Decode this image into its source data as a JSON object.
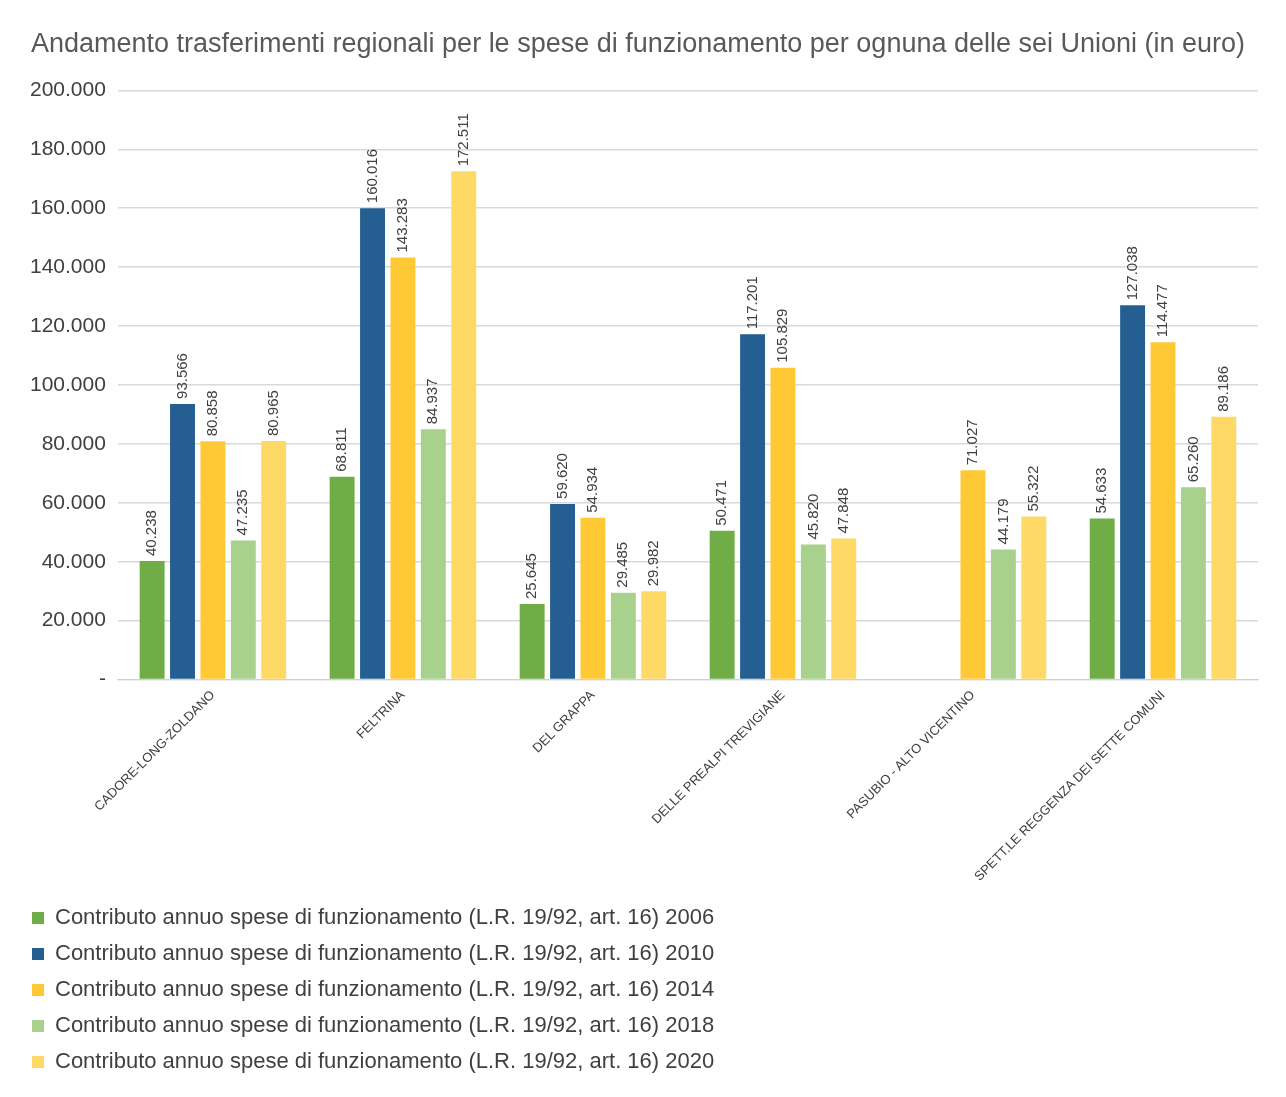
{
  "chart_data": {
    "type": "bar",
    "title": "Andamento trasferimenti regionali per le spese di funzionamento per ognuna delle sei Unioni (in euro)",
    "categories": [
      "CADORE-LONG-ZOLDANO",
      "FELTRINA",
      "DEL GRAPPA",
      "DELLE PREALPI TREVIGIANE",
      "PASUBIO - ALTO VICENTINO",
      "SPETT.LE REGGENZA DEI SETTE COMUNI"
    ],
    "series": [
      {
        "name": "Contributo annuo spese di funzionamento (L.R. 19/92, art. 16) 2006",
        "color": "#70ad47",
        "values": [
          40238,
          68811,
          25645,
          50471,
          null,
          54633
        ],
        "value_labels": [
          "40.238",
          "68.811",
          "25.645",
          "50.471",
          null,
          "54.633"
        ]
      },
      {
        "name": "Contributo annuo spese di funzionamento (L.R. 19/92, art. 16) 2010",
        "color": "#255e91",
        "values": [
          93566,
          160016,
          59620,
          117201,
          null,
          127038
        ],
        "value_labels": [
          "93.566",
          "160.016",
          "59.620",
          "117.201",
          null,
          "127.038"
        ]
      },
      {
        "name": "Contributo annuo spese di funzionamento (L.R. 19/92, art. 16) 2014",
        "color": "#ffc935",
        "values": [
          80858,
          143283,
          54934,
          105829,
          71027,
          114477
        ],
        "value_labels": [
          "80.858",
          "143.283",
          "54.934",
          "105.829",
          "71.027",
          "114.477"
        ]
      },
      {
        "name": "Contributo annuo spese di funzionamento (L.R. 19/92, art. 16) 2018",
        "color": "#a9d18e",
        "values": [
          47235,
          84937,
          29485,
          45820,
          44179,
          65260
        ],
        "value_labels": [
          "47.235",
          "84.937",
          "29.485",
          "45.820",
          "44.179",
          "65.260"
        ]
      },
      {
        "name": "Contributo annuo spese di funzionamento (L.R. 19/92, art. 16) 2020",
        "color": "#ffd966",
        "values": [
          80965,
          172511,
          29982,
          47848,
          55322,
          89186
        ],
        "value_labels": [
          "80.965",
          "172.511",
          "29.982",
          "47.848",
          "55.322",
          "89.186"
        ]
      }
    ],
    "ylim": [
      0,
      200000
    ],
    "yticks": [
      {
        "value": 0,
        "label": "-"
      },
      {
        "value": 20000,
        "label": "20.000"
      },
      {
        "value": 40000,
        "label": "40.000"
      },
      {
        "value": 60000,
        "label": "60.000"
      },
      {
        "value": 80000,
        "label": "80.000"
      },
      {
        "value": 100000,
        "label": "100.000"
      },
      {
        "value": 120000,
        "label": "120.000"
      },
      {
        "value": 140000,
        "label": "140.000"
      },
      {
        "value": 160000,
        "label": "160.000"
      },
      {
        "value": 180000,
        "label": "180.000"
      },
      {
        "value": 200000,
        "label": "200.000"
      }
    ],
    "grid": "y",
    "legend": "bottom"
  }
}
